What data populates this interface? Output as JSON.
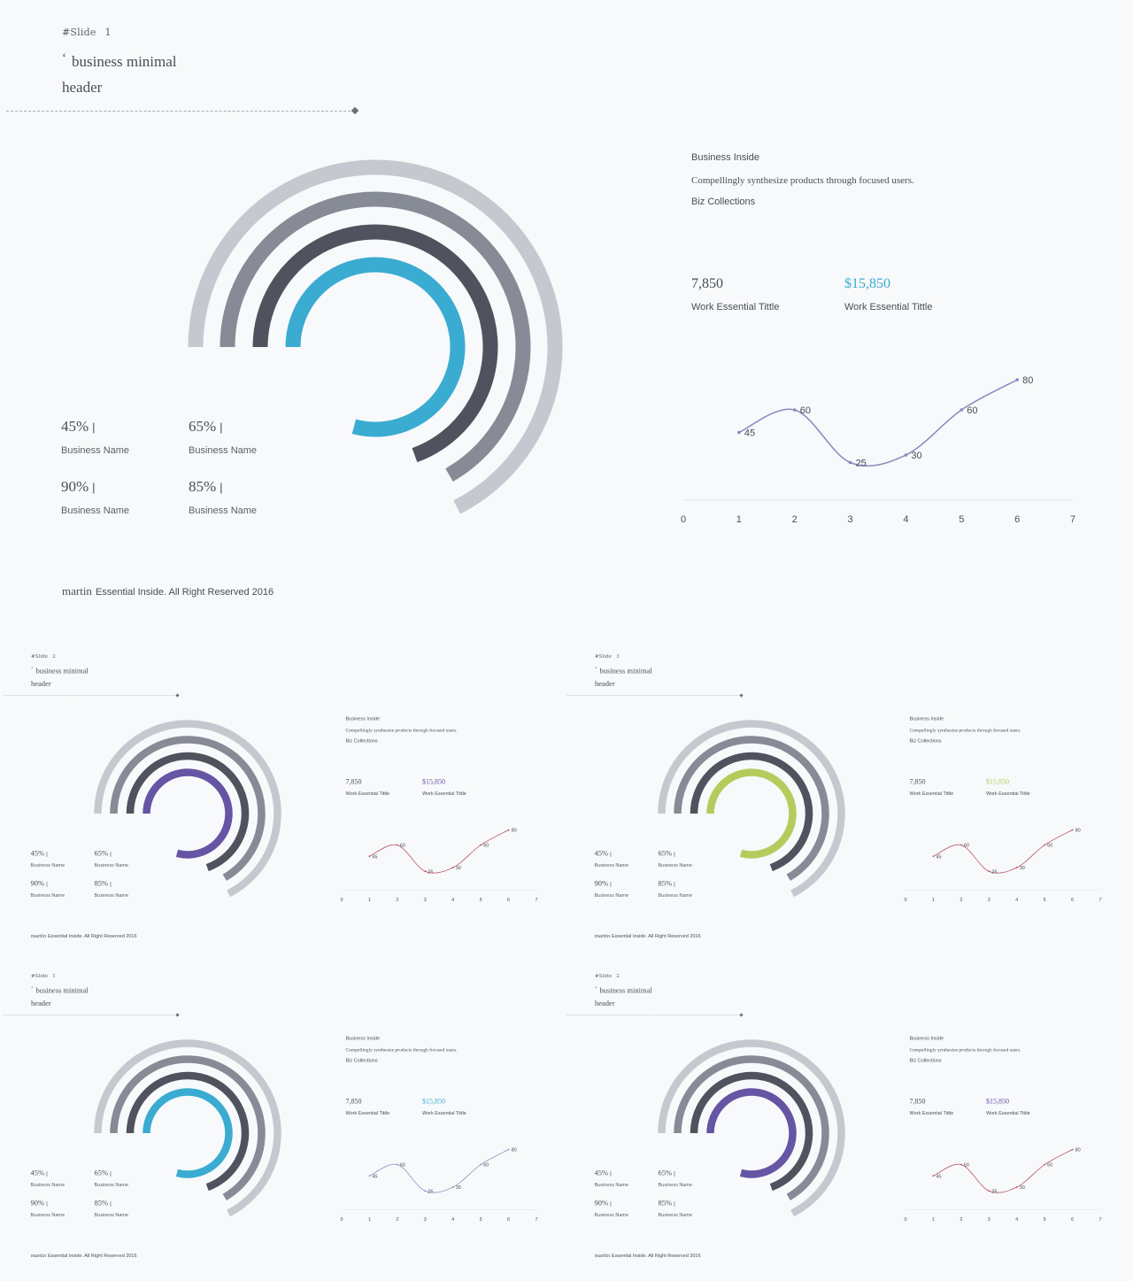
{
  "slides": [
    {
      "slide_label": "#Slide",
      "slide_number": "1",
      "header_quote": "‘",
      "header_line1": "business minimal",
      "header_line2": "header",
      "accent": "#3aabd1",
      "line_color": "#8a88bd",
      "rings": [
        {
          "color": "#c5c8cf",
          "extent_deg": 243
        },
        {
          "color": "#878b96",
          "extent_deg": 240
        },
        {
          "color": "#50535d",
          "extent_deg": 250
        },
        {
          "color": "#3aabd1",
          "extent_deg": 285
        }
      ],
      "stats": [
        {
          "value": "45%",
          "bar": "|",
          "label": "Business Name"
        },
        {
          "value": "65%",
          "bar": "|",
          "label": "Business Name"
        },
        {
          "value": "90%",
          "bar": "|",
          "label": "Business Name"
        },
        {
          "value": "85%",
          "bar": "|",
          "label": "Business Name"
        }
      ],
      "info_title": "Business Inside",
      "info_desc": "Compellingly synthesize products through focused users.",
      "info_sub": "Biz Collections",
      "kpi1_value": "7,850",
      "kpi1_label": "Work Essential Tittle",
      "kpi2_value": "$15,850",
      "kpi2_label": "Work Essential Tittle",
      "footer_brand": "martin",
      "footer_text": "Essential Inside. All Right Reserved 2016"
    },
    {
      "slide_label": "#Slide",
      "slide_number": "2",
      "header_quote": "‘",
      "header_line1": "business minimal",
      "header_line2": "header",
      "accent": "#6654a4",
      "line_color": "#b6475b",
      "rings": [
        {
          "color": "#c5c8cf",
          "extent_deg": 243
        },
        {
          "color": "#878b96",
          "extent_deg": 240
        },
        {
          "color": "#50535d",
          "extent_deg": 250
        },
        {
          "color": "#6654a4",
          "extent_deg": 285
        }
      ],
      "stats": [
        {
          "value": "45%",
          "bar": "|",
          "label": "Business Name"
        },
        {
          "value": "65%",
          "bar": "|",
          "label": "Business Name"
        },
        {
          "value": "90%",
          "bar": "|",
          "label": "Business Name"
        },
        {
          "value": "85%",
          "bar": "|",
          "label": "Business Name"
        }
      ],
      "info_title": "Business Inside",
      "info_desc": "Compellingly synthesize products through focused users.",
      "info_sub": "Biz Collections",
      "kpi1_value": "7,850",
      "kpi1_label": "Work Essential Tittle",
      "kpi2_value": "$15,850",
      "kpi2_label": "Work Essential Tittle",
      "footer_brand": "martin",
      "footer_text": "Essential Inside. All Right Reserved 2016"
    },
    {
      "slide_label": "#Slide",
      "slide_number": "3",
      "header_quote": "‘",
      "header_line1": "business minimal",
      "header_line2": "header",
      "accent": "#b3cc5c",
      "line_color": "#b6475b",
      "rings": [
        {
          "color": "#c5c8cf",
          "extent_deg": 243
        },
        {
          "color": "#878b96",
          "extent_deg": 240
        },
        {
          "color": "#50535d",
          "extent_deg": 250
        },
        {
          "color": "#b3cc5c",
          "extent_deg": 285
        }
      ],
      "stats": [
        {
          "value": "45%",
          "bar": "|",
          "label": "Business Name"
        },
        {
          "value": "65%",
          "bar": "|",
          "label": "Business Name"
        },
        {
          "value": "90%",
          "bar": "|",
          "label": "Business Name"
        },
        {
          "value": "85%",
          "bar": "|",
          "label": "Business Name"
        }
      ],
      "info_title": "Business Inside",
      "info_desc": "Compellingly synthesize products through focused users.",
      "info_sub": "Biz Collections",
      "kpi1_value": "7,850",
      "kpi1_label": "Work Essential Tittle",
      "kpi2_value": "$15,850",
      "kpi2_label": "Work Essential Tittle",
      "footer_brand": "martin",
      "footer_text": "Essential Inside. All Right Reserved 2016"
    },
    {
      "slide_label": "#Slide",
      "slide_number": "1",
      "header_quote": "‘",
      "header_line1": "business minimal",
      "header_line2": "header",
      "accent": "#3aabd1",
      "line_color": "#8a88bd",
      "rings": [
        {
          "color": "#c5c8cf",
          "extent_deg": 243
        },
        {
          "color": "#878b96",
          "extent_deg": 240
        },
        {
          "color": "#50535d",
          "extent_deg": 250
        },
        {
          "color": "#3aabd1",
          "extent_deg": 285
        }
      ],
      "stats": [
        {
          "value": "45%",
          "bar": "|",
          "label": "Business Name"
        },
        {
          "value": "65%",
          "bar": "|",
          "label": "Business Name"
        },
        {
          "value": "90%",
          "bar": "|",
          "label": "Business Name"
        },
        {
          "value": "85%",
          "bar": "|",
          "label": "Business Name"
        }
      ],
      "info_title": "Business Inside",
      "info_desc": "Compellingly synthesize products through focused users.",
      "info_sub": "Biz Collections",
      "kpi1_value": "7,850",
      "kpi1_label": "Work Essential Tittle",
      "kpi2_value": "$15,850",
      "kpi2_label": "Work Essential Tittle",
      "footer_brand": "martin",
      "footer_text": "Essential Inside. All Right Reserved 2016"
    },
    {
      "slide_label": "#Slide",
      "slide_number": "2",
      "header_quote": "‘",
      "header_line1": "business minimal",
      "header_line2": "header",
      "accent": "#6654a4",
      "line_color": "#b6475b",
      "rings": [
        {
          "color": "#c5c8cf",
          "extent_deg": 243
        },
        {
          "color": "#878b96",
          "extent_deg": 240
        },
        {
          "color": "#50535d",
          "extent_deg": 250
        },
        {
          "color": "#6654a4",
          "extent_deg": 285
        }
      ],
      "stats": [
        {
          "value": "45%",
          "bar": "|",
          "label": "Business Name"
        },
        {
          "value": "65%",
          "bar": "|",
          "label": "Business Name"
        },
        {
          "value": "90%",
          "bar": "|",
          "label": "Business Name"
        },
        {
          "value": "85%",
          "bar": "|",
          "label": "Business Name"
        }
      ],
      "info_title": "Business Inside",
      "info_desc": "Compellingly synthesize products through focused users.",
      "info_sub": "Biz Collections",
      "kpi1_value": "7,850",
      "kpi1_label": "Work Essential Tittle",
      "kpi2_value": "$15,850",
      "kpi2_label": "Work Essential Tittle",
      "footer_brand": "martin",
      "footer_text": "Essential Inside. All Right Reserved 2016"
    }
  ],
  "chart_data": {
    "type": "line",
    "x": [
      1,
      2,
      3,
      4,
      5,
      6
    ],
    "values": [
      45,
      60,
      25,
      30,
      60,
      80
    ],
    "data_labels": [
      "45",
      "60",
      "25",
      "30",
      "60",
      "80"
    ],
    "xticks": [
      "0",
      "1",
      "2",
      "3",
      "4",
      "5",
      "6",
      "7"
    ],
    "xlim": [
      0,
      7
    ],
    "ylim": [
      0,
      100
    ],
    "grid": false,
    "title": "",
    "xlabel": "",
    "ylabel": ""
  }
}
